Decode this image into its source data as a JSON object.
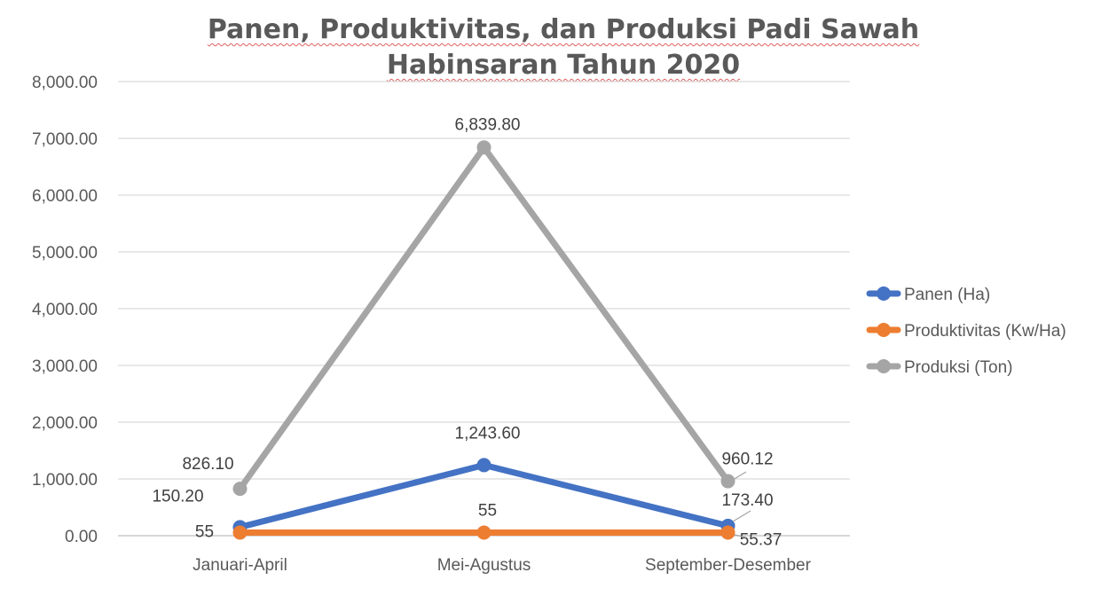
{
  "chart_data": {
    "type": "line",
    "title_lines": [
      "Panen, Produktivitas, dan Produksi Padi Sawah",
      "Habinsaran Tahun 2020"
    ],
    "categories": [
      "Januari-April",
      "Mei-Agustus",
      "September-Desember"
    ],
    "ylim": [
      0,
      8000
    ],
    "yticks": [
      0,
      1000,
      2000,
      3000,
      4000,
      5000,
      6000,
      7000,
      8000
    ],
    "ytick_labels": [
      "0.00",
      "1,000.00",
      "2,000.00",
      "3,000.00",
      "4,000.00",
      "5,000.00",
      "6,000.00",
      "7,000.00",
      "8,000.00"
    ],
    "grid": true,
    "legend_position": "right",
    "series": [
      {
        "name": "Panen (Ha)",
        "color": "#4472c4",
        "values": [
          150.2,
          1243.6,
          173.4
        ],
        "labels": [
          "150.20",
          "1,243.60",
          "173.40"
        ]
      },
      {
        "name": "Produktivitas (Kw/Ha)",
        "color": "#ed7d31",
        "values": [
          55,
          55,
          55.37
        ],
        "labels": [
          "55",
          "55",
          "55.37"
        ]
      },
      {
        "name": "Produksi (Ton)",
        "color": "#a5a5a5",
        "values": [
          826.1,
          6839.8,
          960.12
        ],
        "labels": [
          "826.10",
          "6,839.80",
          "960.12"
        ]
      }
    ]
  }
}
